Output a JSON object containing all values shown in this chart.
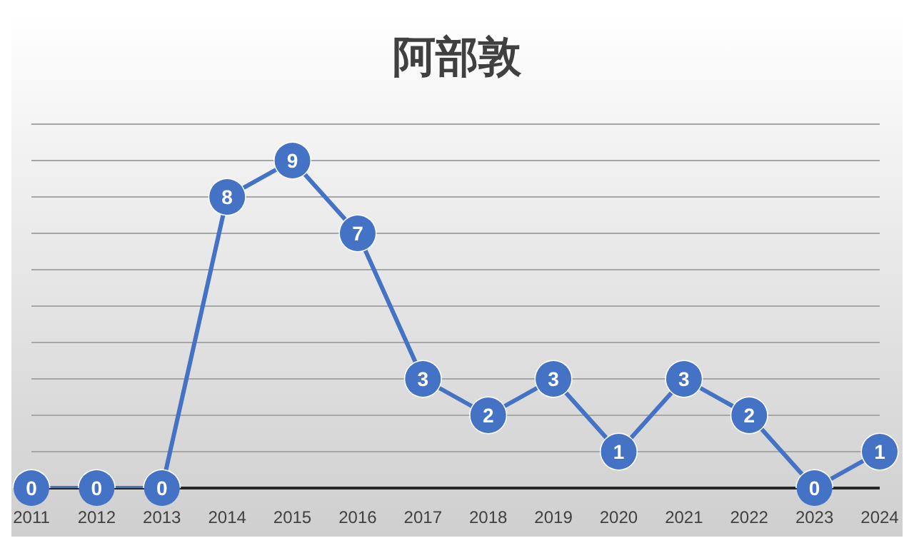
{
  "chart_data": {
    "type": "line",
    "title": "阿部敦",
    "categories": [
      "2011",
      "2012",
      "2013",
      "2014",
      "2015",
      "2016",
      "2017",
      "2018",
      "2019",
      "2020",
      "2021",
      "2022",
      "2023",
      "2024"
    ],
    "series": [
      {
        "color": "#4472c4",
        "values": [
          0,
          0,
          0,
          8,
          9,
          7,
          3,
          2,
          3,
          1,
          3,
          2,
          0,
          1
        ]
      }
    ],
    "ylim": [
      0,
      10
    ],
    "yticks": [
      {
        "value": 0,
        "label": null
      },
      {
        "value": 1,
        "label": null
      },
      {
        "value": 2,
        "label": null
      },
      {
        "value": 3,
        "label": null
      },
      {
        "value": 4,
        "label": null
      },
      {
        "value": 5,
        "label": null
      },
      {
        "value": 6,
        "label": null
      },
      {
        "value": 7,
        "label": null
      },
      {
        "value": 8,
        "label": null
      },
      {
        "value": 9,
        "label": null
      },
      {
        "value": 10,
        "label": null
      }
    ],
    "tick_labels": "x",
    "grid": "y",
    "legend": false,
    "marker": "circle",
    "line_style": "solid",
    "data_labels": true
  }
}
